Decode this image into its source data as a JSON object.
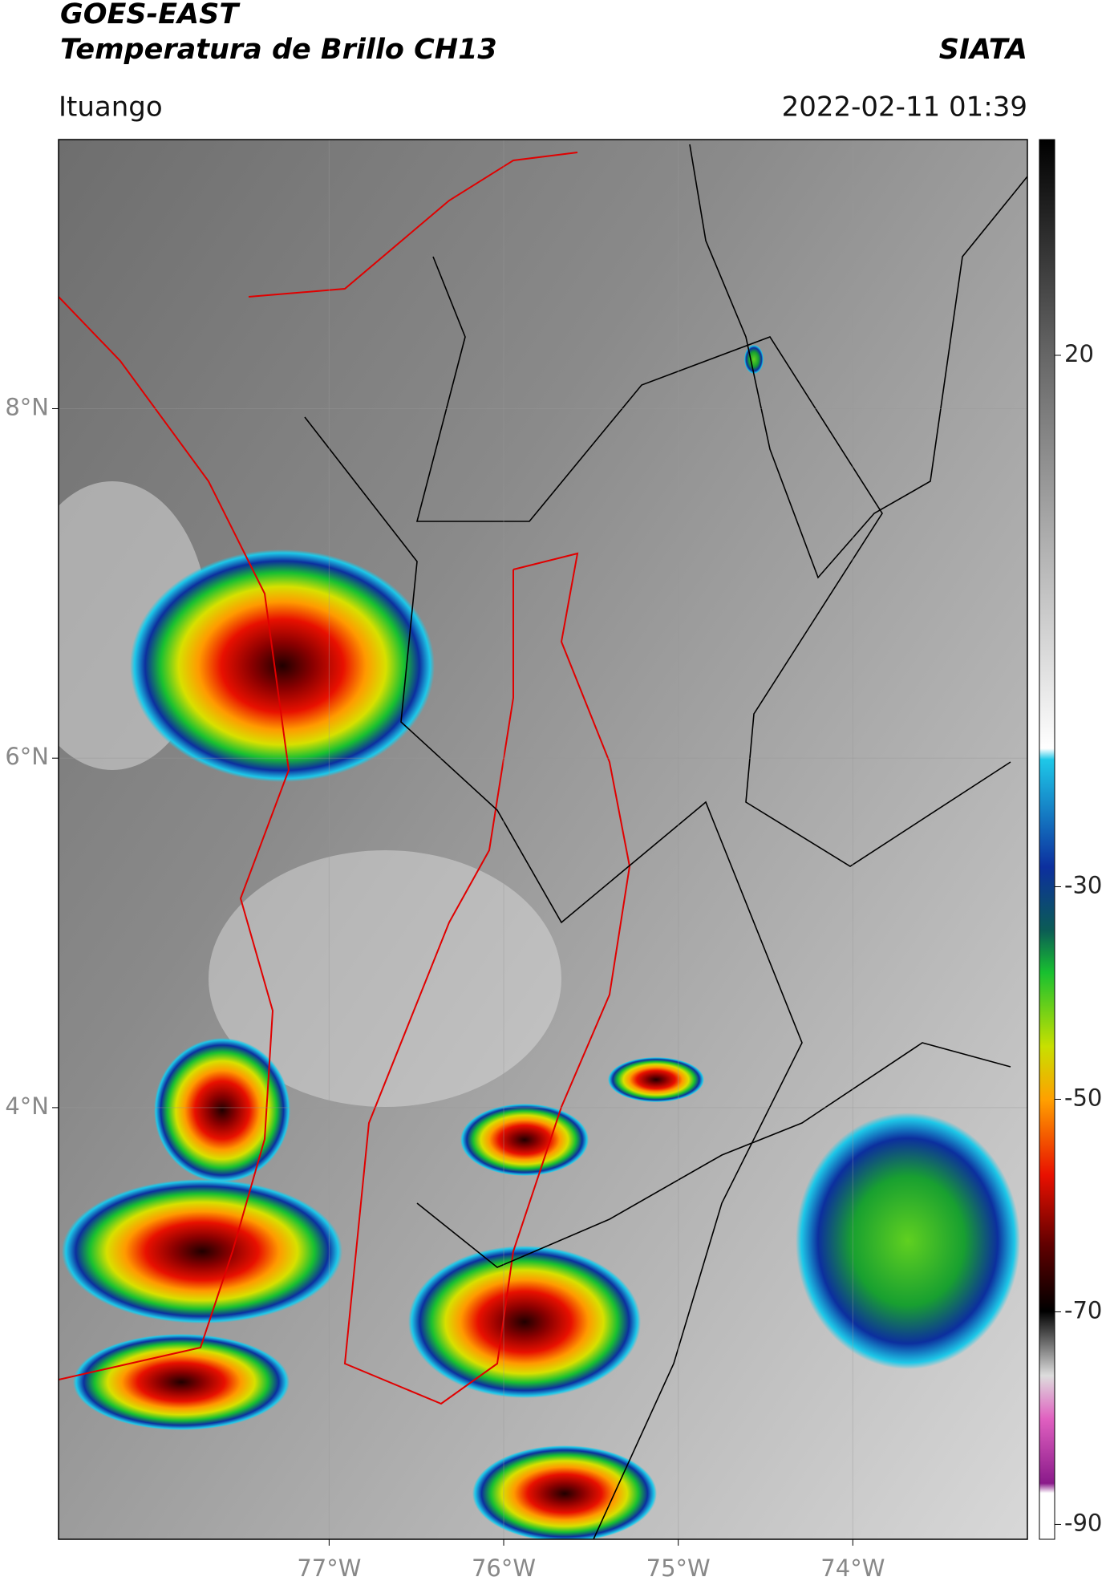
{
  "header": {
    "title": "GOES-EAST",
    "subtitle": "Temperatura de Brillo CH13",
    "source": "SIATA",
    "location": "Ituango",
    "datetime": "2022-02-11 01:39"
  },
  "map": {
    "lonlim": [
      -78.55,
      -73.0
    ],
    "latlim": [
      1.53,
      9.54
    ],
    "lonticks": [
      {
        "value": -77,
        "label": "77°W"
      },
      {
        "value": -76,
        "label": "76°W"
      },
      {
        "value": -75,
        "label": "75°W"
      },
      {
        "value": -74,
        "label": "74°W"
      }
    ],
    "latticks": [
      {
        "value": 8,
        "label": "8°N"
      },
      {
        "value": 6,
        "label": "6°N"
      },
      {
        "value": 4,
        "label": "4°N"
      }
    ]
  },
  "colorbar": {
    "lim": [
      -91.4,
      40.3
    ],
    "ticks": [
      20,
      -30,
      -50,
      -70,
      -90
    ]
  }
}
